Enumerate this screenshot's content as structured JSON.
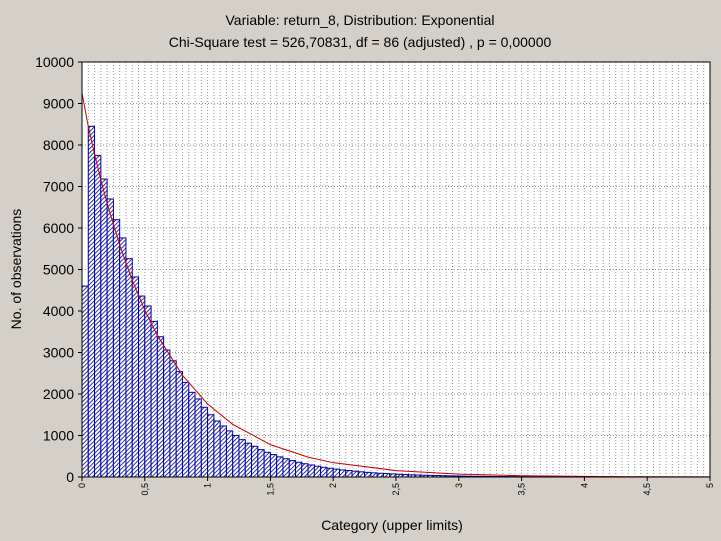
{
  "chart_data": {
    "type": "bar",
    "title": "Variable: return_8, Distribution: Exponential",
    "subtitle": "Chi-Square test = 526,70831, df = 86 (adjusted) , p = 0,00000",
    "xlabel": "Category (upper limits)",
    "ylabel": "No. of observations",
    "ylim": [
      0,
      10000
    ],
    "yticks": [
      0,
      1000,
      2000,
      3000,
      4000,
      5000,
      6000,
      7000,
      8000,
      9000,
      10000
    ],
    "xlim": [
      0,
      5
    ],
    "bin_width": 0.05,
    "xtick_labels": [
      "0",
      "0,5",
      "1",
      "1,5",
      "2",
      "2,5",
      "3",
      "3,5",
      "4",
      "4,5",
      "5"
    ],
    "grid": true,
    "colors": {
      "bars": "#0000a0",
      "fit_curve": "#cc0000",
      "background": "#d4d0c8",
      "plot_area": "#ffffff"
    },
    "series": [
      {
        "type": "bar",
        "values": [
          4600,
          8450,
          7750,
          7180,
          6700,
          6200,
          5760,
          5260,
          4820,
          4360,
          4120,
          3750,
          3380,
          3060,
          2800,
          2540,
          2280,
          2040,
          1880,
          1680,
          1500,
          1350,
          1230,
          1110,
          1000,
          900,
          815,
          740,
          660,
          595,
          540,
          485,
          440,
          395,
          355,
          320,
          290,
          260,
          235,
          210,
          190,
          170,
          155,
          140,
          125,
          112,
          100,
          90,
          82,
          74,
          66,
          59,
          53,
          48,
          43,
          39,
          35,
          31,
          28,
          25,
          23,
          20,
          18,
          16,
          15,
          13,
          12,
          11,
          10,
          9,
          8,
          7,
          6,
          6,
          5,
          5,
          4,
          4,
          3,
          3,
          3,
          2,
          2,
          2,
          2,
          1,
          1,
          1,
          1,
          1,
          1,
          1,
          1,
          1,
          1,
          1,
          1,
          1,
          1,
          1
        ]
      },
      {
        "type": "line",
        "x": [
          0,
          0.05,
          0.1,
          0.15,
          0.2,
          0.3,
          0.4,
          0.5,
          0.6,
          0.8,
          1.0,
          1.2,
          1.5,
          1.8,
          2.0,
          2.5,
          3.0,
          3.5,
          4.0,
          4.5,
          5.0
        ],
        "values": [
          9250,
          8450,
          7780,
          7160,
          6590,
          5590,
          4740,
          4020,
          3410,
          2450,
          1760,
          1270,
          780,
          480,
          345,
          155,
          70,
          31,
          14,
          6,
          3
        ]
      }
    ]
  }
}
